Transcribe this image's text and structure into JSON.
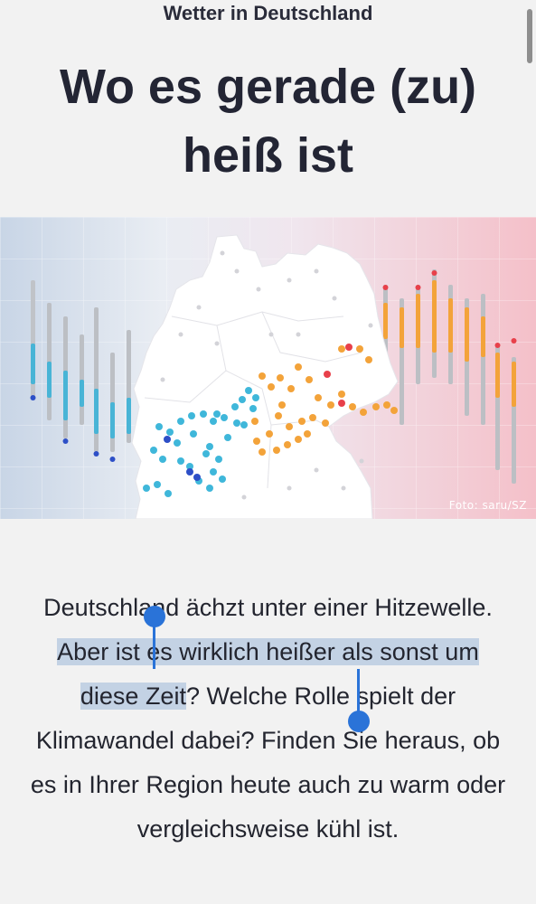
{
  "header": {
    "kicker": "Wetter in Deutschland",
    "title": "Wo es gerade (zu) heiß ist"
  },
  "hero_image": {
    "credit": "Foto: saru/SZ",
    "colors": {
      "cold": "#c9d6e6",
      "warm": "#f3c3cc",
      "cold_dot": "#3fb7da",
      "deep_cold_dot": "#2d4fc7",
      "warm_dot": "#f3a33a",
      "hot_dot": "#e8404a",
      "land": "#ffffff"
    }
  },
  "article": {
    "text_before": "Deutschland ächzt unter einer Hit­zewelle. ",
    "selected": "Aber ist es wirklich heißer als sonst um diese Zeit",
    "text_after": "? Welche Rolle spielt der Klimawandel dabei? Finden Sie heraus, ob es in Ihrer Region heute auch zu warm oder vergleichsweise kühl ist."
  },
  "selection": {
    "highlight_color": "#c3d2e4",
    "handle_color": "#2a73d8"
  }
}
